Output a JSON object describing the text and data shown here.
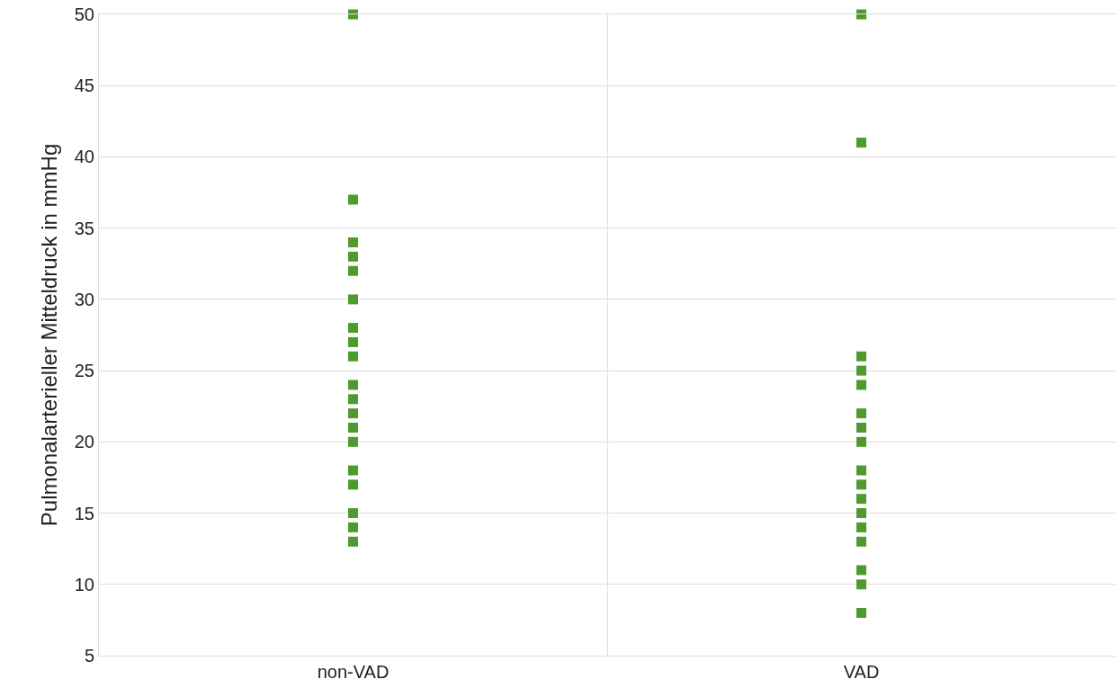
{
  "chart_data": {
    "type": "scatter",
    "ylabel": "Pulmonalarterieller Mitteldruck in mmHg",
    "categories": [
      "non-VAD",
      "VAD"
    ],
    "series": [
      {
        "color": "#4e9a2c",
        "x": [
          "non-VAD",
          "non-VAD",
          "non-VAD",
          "non-VAD",
          "non-VAD",
          "non-VAD",
          "non-VAD",
          "non-VAD",
          "non-VAD",
          "non-VAD",
          "non-VAD",
          "non-VAD",
          "non-VAD",
          "non-VAD",
          "non-VAD",
          "non-VAD",
          "non-VAD",
          "non-VAD",
          "non-VAD",
          "VAD",
          "VAD",
          "VAD",
          "VAD",
          "VAD",
          "VAD",
          "VAD",
          "VAD",
          "VAD",
          "VAD",
          "VAD",
          "VAD",
          "VAD",
          "VAD",
          "VAD",
          "VAD",
          "VAD"
        ],
        "values": [
          50,
          37,
          34,
          33,
          32,
          30,
          28,
          27,
          26,
          24,
          23,
          22,
          21,
          20,
          18,
          17,
          15,
          14,
          13,
          50,
          41,
          26,
          25,
          24,
          22,
          21,
          20,
          18,
          17,
          16,
          15,
          14,
          13,
          11,
          10,
          8
        ]
      }
    ],
    "ylim": [
      5,
      50
    ],
    "yticks": [
      5,
      10,
      15,
      20,
      25,
      30,
      35,
      40,
      45,
      50
    ],
    "grid": true,
    "marker": "square"
  }
}
